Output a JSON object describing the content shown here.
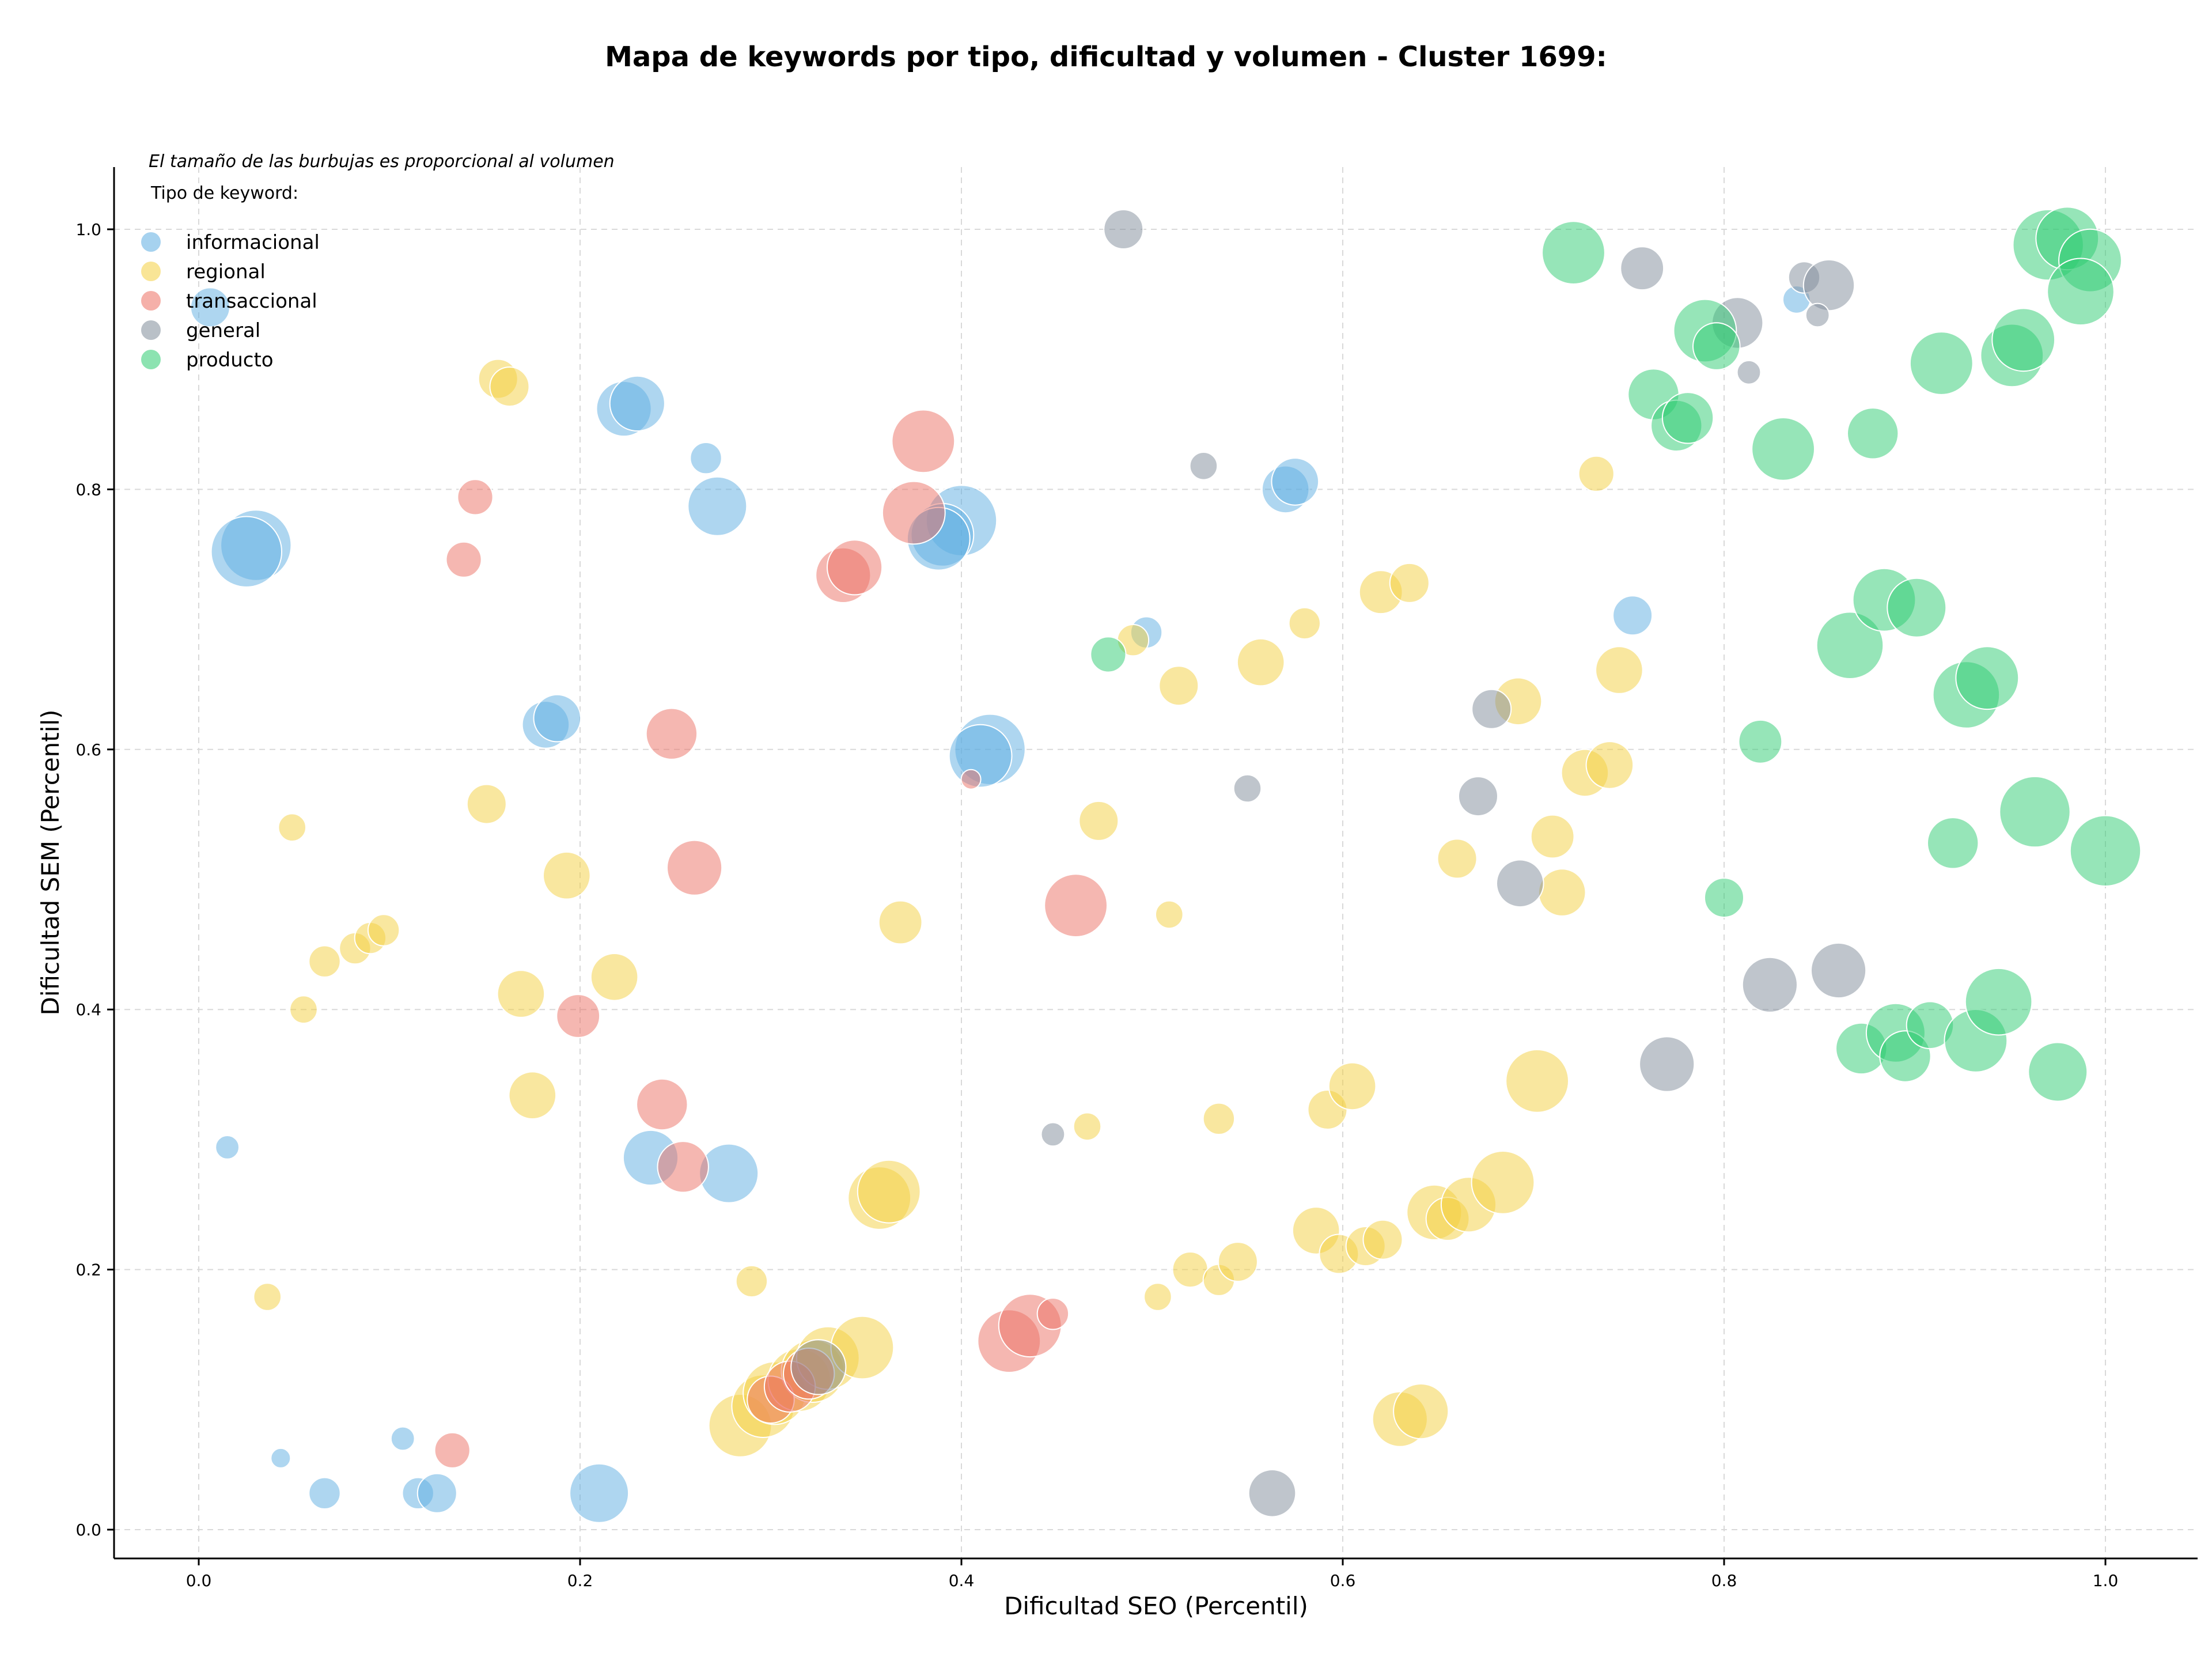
{
  "chart_data": {
    "type": "scatter",
    "title": "Mapa de keywords por tipo, dificultad y volumen - Cluster 1699:",
    "xlabel": "Dificultad SEO (Percentil)",
    "ylabel": "Dificultad SEM (Percentil)",
    "xlim": [
      -0.04,
      1.05
    ],
    "ylim": [
      -0.02,
      1.05
    ],
    "x_ticks": [
      "0.0",
      "0.2",
      "0.4",
      "0.6",
      "0.8",
      "1.0"
    ],
    "y_ticks": [
      "0.0",
      "0.2",
      "0.4",
      "0.6",
      "0.8",
      "1.0"
    ],
    "grid": true,
    "annotation": "El tamaño de las burbujas es proporcional al volumen",
    "legend_title": "Tipo de keyword:",
    "legend_position": "top-left",
    "series": [
      {
        "name": "informacional",
        "color": "#5dade2",
        "points": [
          [
            0.006,
            0.94,
            10
          ],
          [
            0.03,
            0.757,
            18
          ],
          [
            0.025,
            0.752,
            18
          ],
          [
            0.015,
            0.294,
            6
          ],
          [
            0.043,
            0.055,
            5
          ],
          [
            0.066,
            0.028,
            8
          ],
          [
            0.107,
            0.07,
            6
          ],
          [
            0.115,
            0.028,
            8
          ],
          [
            0.125,
            0.028,
            10
          ],
          [
            0.21,
            0.028,
            15
          ],
          [
            0.223,
            0.862,
            14
          ],
          [
            0.23,
            0.866,
            14
          ],
          [
            0.266,
            0.824,
            8
          ],
          [
            0.272,
            0.787,
            15
          ],
          [
            0.182,
            0.619,
            12
          ],
          [
            0.188,
            0.624,
            12
          ],
          [
            0.237,
            0.286,
            14
          ],
          [
            0.278,
            0.274,
            15
          ],
          [
            0.4,
            0.776,
            18
          ],
          [
            0.39,
            0.765,
            16
          ],
          [
            0.388,
            0.762,
            16
          ],
          [
            0.415,
            0.6,
            18
          ],
          [
            0.41,
            0.595,
            16
          ],
          [
            0.497,
            0.69,
            8
          ],
          [
            0.57,
            0.8,
            12
          ],
          [
            0.575,
            0.806,
            12
          ],
          [
            0.752,
            0.703,
            10
          ],
          [
            0.838,
            0.946,
            7
          ]
        ]
      },
      {
        "name": "regional",
        "color": "#f4d03f",
        "points": [
          [
            0.157,
            0.885,
            10
          ],
          [
            0.163,
            0.879,
            10
          ],
          [
            0.049,
            0.54,
            7
          ],
          [
            0.151,
            0.558,
            10
          ],
          [
            0.193,
            0.503,
            12
          ],
          [
            0.055,
            0.4,
            7
          ],
          [
            0.066,
            0.437,
            8
          ],
          [
            0.082,
            0.447,
            8
          ],
          [
            0.09,
            0.455,
            8
          ],
          [
            0.097,
            0.461,
            8
          ],
          [
            0.169,
            0.412,
            12
          ],
          [
            0.218,
            0.425,
            12
          ],
          [
            0.175,
            0.334,
            12
          ],
          [
            0.036,
            0.179,
            7
          ],
          [
            0.29,
            0.191,
            8
          ],
          [
            0.284,
            0.08,
            16
          ],
          [
            0.296,
            0.095,
            16
          ],
          [
            0.302,
            0.105,
            16
          ],
          [
            0.315,
            0.115,
            16
          ],
          [
            0.322,
            0.122,
            16
          ],
          [
            0.33,
            0.132,
            16
          ],
          [
            0.348,
            0.14,
            16
          ],
          [
            0.357,
            0.255,
            16
          ],
          [
            0.362,
            0.26,
            16
          ],
          [
            0.368,
            0.467,
            11
          ],
          [
            0.466,
            0.31,
            7
          ],
          [
            0.472,
            0.545,
            10
          ],
          [
            0.49,
            0.684,
            8
          ],
          [
            0.509,
            0.473,
            7
          ],
          [
            0.514,
            0.649,
            10
          ],
          [
            0.503,
            0.179,
            7
          ],
          [
            0.52,
            0.2,
            9
          ],
          [
            0.535,
            0.192,
            8
          ],
          [
            0.545,
            0.206,
            10
          ],
          [
            0.535,
            0.316,
            8
          ],
          [
            0.557,
            0.667,
            12
          ],
          [
            0.58,
            0.697,
            8
          ],
          [
            0.586,
            0.23,
            12
          ],
          [
            0.592,
            0.323,
            10
          ],
          [
            0.598,
            0.212,
            10
          ],
          [
            0.605,
            0.341,
            12
          ],
          [
            0.612,
            0.218,
            10
          ],
          [
            0.621,
            0.223,
            10
          ],
          [
            0.62,
            0.721,
            11
          ],
          [
            0.635,
            0.728,
            10
          ],
          [
            0.63,
            0.085,
            14
          ],
          [
            0.641,
            0.091,
            14
          ],
          [
            0.648,
            0.244,
            14
          ],
          [
            0.66,
            0.516,
            10
          ],
          [
            0.655,
            0.239,
            11
          ],
          [
            0.666,
            0.25,
            14
          ],
          [
            0.684,
            0.267,
            16
          ],
          [
            0.692,
            0.637,
            12
          ],
          [
            0.702,
            0.345,
            16
          ],
          [
            0.71,
            0.533,
            11
          ],
          [
            0.715,
            0.49,
            12
          ],
          [
            0.727,
            0.582,
            12
          ],
          [
            0.733,
            0.812,
            9
          ],
          [
            0.74,
            0.588,
            12
          ],
          [
            0.745,
            0.661,
            12
          ]
        ]
      },
      {
        "name": "transaccional",
        "color": "#ec7063",
        "points": [
          [
            0.145,
            0.794,
            9
          ],
          [
            0.139,
            0.746,
            9
          ],
          [
            0.133,
            0.061,
            9
          ],
          [
            0.199,
            0.395,
            11
          ],
          [
            0.248,
            0.612,
            13
          ],
          [
            0.26,
            0.509,
            14
          ],
          [
            0.243,
            0.327,
            13
          ],
          [
            0.254,
            0.279,
            13
          ],
          [
            0.38,
            0.837,
            16
          ],
          [
            0.375,
            0.782,
            16
          ],
          [
            0.338,
            0.734,
            14
          ],
          [
            0.344,
            0.74,
            14
          ],
          [
            0.405,
            0.577,
            5
          ],
          [
            0.46,
            0.48,
            16
          ],
          [
            0.3,
            0.1,
            12
          ],
          [
            0.31,
            0.11,
            13
          ],
          [
            0.32,
            0.12,
            13
          ],
          [
            0.425,
            0.145,
            16
          ],
          [
            0.436,
            0.157,
            16
          ],
          [
            0.448,
            0.166,
            8
          ]
        ]
      },
      {
        "name": "general",
        "color": "#7f8c99",
        "points": [
          [
            0.485,
            1.0,
            10
          ],
          [
            0.527,
            0.818,
            7
          ],
          [
            0.55,
            0.57,
            7
          ],
          [
            0.448,
            0.304,
            6
          ],
          [
            0.563,
            0.028,
            12
          ],
          [
            0.757,
            0.97,
            11
          ],
          [
            0.842,
            0.963,
            8
          ],
          [
            0.855,
            0.957,
            13
          ],
          [
            0.849,
            0.934,
            6
          ],
          [
            0.807,
            0.928,
            13
          ],
          [
            0.813,
            0.89,
            6
          ],
          [
            0.678,
            0.631,
            10
          ],
          [
            0.671,
            0.564,
            10
          ],
          [
            0.693,
            0.497,
            12
          ],
          [
            0.77,
            0.358,
            14
          ],
          [
            0.824,
            0.419,
            14
          ],
          [
            0.86,
            0.43,
            14
          ],
          [
            0.325,
            0.125,
            14
          ]
        ]
      },
      {
        "name": "producto",
        "color": "#2ecc71",
        "points": [
          [
            0.721,
            0.982,
            16
          ],
          [
            0.763,
            0.873,
            13
          ],
          [
            0.775,
            0.849,
            13
          ],
          [
            0.781,
            0.855,
            13
          ],
          [
            0.79,
            0.922,
            16
          ],
          [
            0.796,
            0.91,
            12
          ],
          [
            0.831,
            0.831,
            16
          ],
          [
            0.878,
            0.843,
            13
          ],
          [
            0.914,
            0.897,
            16
          ],
          [
            0.951,
            0.903,
            16
          ],
          [
            0.957,
            0.915,
            16
          ],
          [
            0.97,
            0.988,
            18
          ],
          [
            0.98,
            0.993,
            16
          ],
          [
            0.992,
            0.976,
            16
          ],
          [
            0.987,
            0.952,
            17
          ],
          [
            0.477,
            0.673,
            9
          ],
          [
            0.819,
            0.606,
            11
          ],
          [
            0.8,
            0.486,
            10
          ],
          [
            0.866,
            0.68,
            17
          ],
          [
            0.884,
            0.715,
            16
          ],
          [
            0.901,
            0.709,
            15
          ],
          [
            0.927,
            0.642,
            17
          ],
          [
            0.938,
            0.655,
            16
          ],
          [
            0.963,
            0.552,
            18
          ],
          [
            0.92,
            0.528,
            13
          ],
          [
            1.0,
            0.522,
            18
          ],
          [
            0.872,
            0.37,
            13
          ],
          [
            0.89,
            0.382,
            15
          ],
          [
            0.895,
            0.364,
            13
          ],
          [
            0.908,
            0.388,
            12
          ],
          [
            0.932,
            0.376,
            16
          ],
          [
            0.944,
            0.406,
            17
          ],
          [
            0.975,
            0.352,
            15
          ]
        ]
      }
    ]
  }
}
